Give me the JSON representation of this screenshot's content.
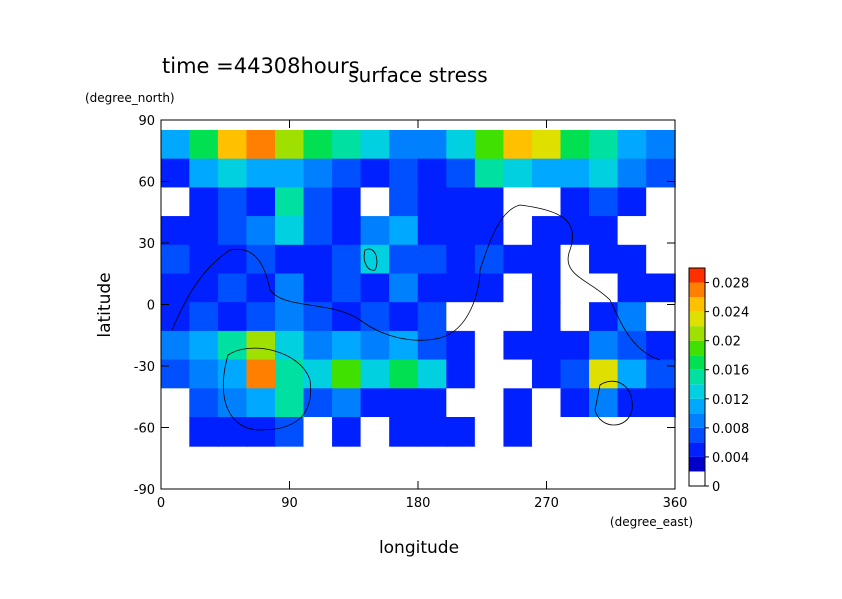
{
  "chart_data": {
    "type": "contour",
    "title": "surface stress",
    "subtitle": "time =44308hours",
    "xlabel": "longitude",
    "ylabel": "latitude",
    "xunit": "(degree_east)",
    "yunit": "(degree_north)",
    "xlim": [
      0,
      360
    ],
    "ylim": [
      -90,
      90
    ],
    "xticks": [
      0,
      90,
      180,
      270,
      360
    ],
    "yticks": [
      -90,
      -60,
      -30,
      0,
      30,
      60,
      90
    ],
    "x": [
      10,
      30,
      50,
      70,
      90,
      110,
      130,
      150,
      170,
      190,
      210,
      230,
      250,
      270,
      290,
      310,
      330,
      350
    ],
    "y": [
      78,
      64,
      50,
      36,
      22,
      8,
      -6,
      -20,
      -34,
      -48,
      -62
    ],
    "z": [
      [
        0.01,
        0.016,
        0.024,
        0.026,
        0.02,
        0.016,
        0.014,
        0.012,
        0.008,
        0.008,
        0.012,
        0.018,
        0.024,
        0.022,
        0.016,
        0.014,
        0.01,
        0.008
      ],
      [
        0.004,
        0.01,
        0.012,
        0.01,
        0.01,
        0.008,
        0.006,
        0.004,
        0.006,
        0.004,
        0.006,
        0.014,
        0.012,
        0.01,
        0.01,
        0.012,
        0.008,
        0.006
      ],
      [
        0.001,
        0.004,
        0.006,
        0.004,
        0.014,
        0.006,
        0.004,
        0.001,
        0.006,
        0.004,
        0.004,
        0.004,
        0.001,
        0.001,
        0.004,
        0.006,
        0.004,
        0.001
      ],
      [
        0.004,
        0.004,
        0.006,
        0.008,
        0.012,
        0.006,
        0.004,
        0.008,
        0.01,
        0.004,
        0.004,
        0.004,
        0.001,
        0.004,
        0.004,
        0.004,
        0.001,
        0.001
      ],
      [
        0.006,
        0.004,
        0.004,
        0.006,
        0.004,
        0.004,
        0.006,
        0.012,
        0.006,
        0.006,
        0.004,
        0.006,
        0.004,
        0.004,
        0.001,
        0.004,
        0.004,
        0.001
      ],
      [
        0.004,
        0.004,
        0.006,
        0.004,
        0.008,
        0.004,
        0.006,
        0.004,
        0.008,
        0.004,
        0.004,
        0.004,
        0.001,
        0.004,
        0.001,
        0.001,
        0.004,
        0.004
      ],
      [
        0.004,
        0.006,
        0.004,
        0.006,
        0.008,
        0.006,
        0.004,
        0.006,
        0.004,
        0.006,
        0.001,
        0.001,
        0.001,
        0.004,
        0.001,
        0.004,
        0.008,
        0.001
      ],
      [
        0.008,
        0.01,
        0.014,
        0.02,
        0.012,
        0.008,
        0.01,
        0.008,
        0.01,
        0.006,
        0.004,
        0.001,
        0.004,
        0.004,
        0.004,
        0.008,
        0.006,
        0.004
      ],
      [
        0.006,
        0.008,
        0.01,
        0.026,
        0.014,
        0.012,
        0.018,
        0.012,
        0.016,
        0.012,
        0.004,
        0.001,
        0.001,
        0.004,
        0.006,
        0.022,
        0.01,
        0.006
      ],
      [
        0.001,
        0.006,
        0.008,
        0.01,
        0.014,
        0.006,
        0.008,
        0.004,
        0.004,
        0.004,
        0.001,
        0.001,
        0.004,
        0.001,
        0.004,
        0.008,
        0.004,
        0.004
      ],
      [
        0.001,
        0.004,
        0.004,
        0.004,
        0.006,
        0.001,
        0.004,
        0.001,
        0.004,
        0.004,
        0.004,
        0.001,
        0.004,
        0.001,
        0.001,
        0.001,
        0.001,
        0.001
      ]
    ],
    "levels": [
      0,
      0.002,
      0.004,
      0.006,
      0.008,
      0.01,
      0.012,
      0.014,
      0.016,
      0.018,
      0.02,
      0.022,
      0.024,
      0.026,
      0.028,
      0.03
    ],
    "colors": [
      "#ffffff",
      "#0000c8",
      "#0020ff",
      "#0050ff",
      "#0080ff",
      "#00a8ff",
      "#00d0e0",
      "#00e0a0",
      "#00e050",
      "#40e000",
      "#a0e000",
      "#e0e000",
      "#ffc000",
      "#ff8000",
      "#ff3000"
    ],
    "colorbar_ticks": [
      0,
      0.004,
      0.008,
      0.012,
      0.016,
      0.02,
      0.024,
      0.028
    ]
  }
}
